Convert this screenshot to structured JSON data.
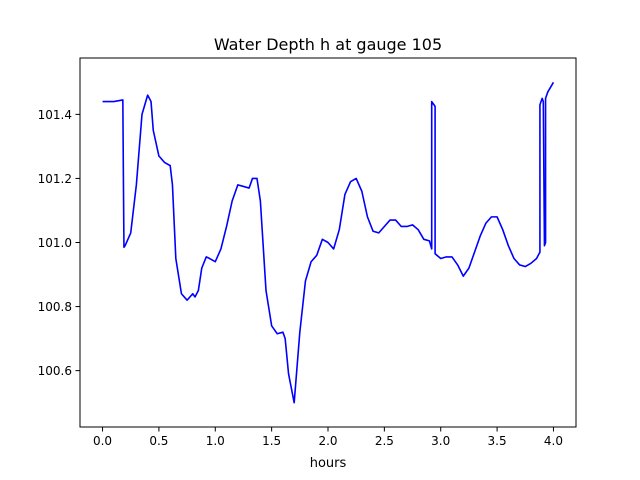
{
  "chart_data": {
    "type": "line",
    "title": "Water Depth h at gauge 105",
    "xlabel": "hours",
    "ylabel": "",
    "xlim": [
      -0.2,
      4.2
    ],
    "ylim": [
      100.424,
      101.576
    ],
    "x_ticks": [
      0.0,
      0.5,
      1.0,
      1.5,
      2.0,
      2.5,
      3.0,
      3.5,
      4.0
    ],
    "x_tick_labels": [
      "0.0",
      "0.5",
      "1.0",
      "1.5",
      "2.0",
      "2.5",
      "3.0",
      "3.5",
      "4.0"
    ],
    "y_ticks": [
      100.6,
      100.8,
      101.0,
      101.2,
      101.4
    ],
    "y_tick_labels": [
      "100.6",
      "100.8",
      "101.0",
      "101.2",
      "101.4"
    ],
    "grid": false,
    "legend": "none",
    "series": [
      {
        "color": "#0000ff",
        "x": [
          0.0,
          0.1,
          0.18,
          0.185,
          0.19,
          0.2,
          0.25,
          0.3,
          0.35,
          0.4,
          0.43,
          0.45,
          0.5,
          0.55,
          0.6,
          0.62,
          0.65,
          0.7,
          0.75,
          0.8,
          0.82,
          0.85,
          0.88,
          0.92,
          0.95,
          1.0,
          1.05,
          1.1,
          1.15,
          1.2,
          1.25,
          1.3,
          1.33,
          1.37,
          1.4,
          1.45,
          1.5,
          1.55,
          1.6,
          1.62,
          1.65,
          1.7,
          1.75,
          1.8,
          1.85,
          1.9,
          1.95,
          2.0,
          2.05,
          2.1,
          2.15,
          2.2,
          2.25,
          2.3,
          2.35,
          2.4,
          2.45,
          2.5,
          2.55,
          2.6,
          2.65,
          2.7,
          2.75,
          2.8,
          2.85,
          2.9,
          2.92,
          2.92,
          2.95,
          2.95,
          3.0,
          3.05,
          3.1,
          3.15,
          3.2,
          3.25,
          3.3,
          3.35,
          3.4,
          3.45,
          3.5,
          3.55,
          3.6,
          3.65,
          3.7,
          3.75,
          3.8,
          3.85,
          3.88,
          3.88,
          3.9,
          3.91,
          3.92,
          3.93,
          3.93,
          3.95,
          4.0
        ],
        "y": [
          101.44,
          101.44,
          101.445,
          101.2,
          100.985,
          100.99,
          101.03,
          101.18,
          101.4,
          101.46,
          101.44,
          101.35,
          101.27,
          101.25,
          101.24,
          101.18,
          100.95,
          100.84,
          100.82,
          100.84,
          100.83,
          100.85,
          100.92,
          100.955,
          100.95,
          100.94,
          100.98,
          101.05,
          101.13,
          101.18,
          101.175,
          101.17,
          101.2,
          101.2,
          101.13,
          100.85,
          100.74,
          100.715,
          100.72,
          100.7,
          100.59,
          100.5,
          100.72,
          100.88,
          100.94,
          100.96,
          101.01,
          101.0,
          100.98,
          101.04,
          101.15,
          101.19,
          101.2,
          101.16,
          101.08,
          101.035,
          101.03,
          101.05,
          101.07,
          101.07,
          101.05,
          101.05,
          101.055,
          101.04,
          101.01,
          101.005,
          100.98,
          101.44,
          101.425,
          100.965,
          100.95,
          100.955,
          100.955,
          100.93,
          100.895,
          100.92,
          100.97,
          101.02,
          101.06,
          101.08,
          101.08,
          101.04,
          100.99,
          100.95,
          100.93,
          100.925,
          100.935,
          100.95,
          100.97,
          101.43,
          101.45,
          101.44,
          100.99,
          101.0,
          101.45,
          101.47,
          101.5
        ]
      }
    ]
  }
}
